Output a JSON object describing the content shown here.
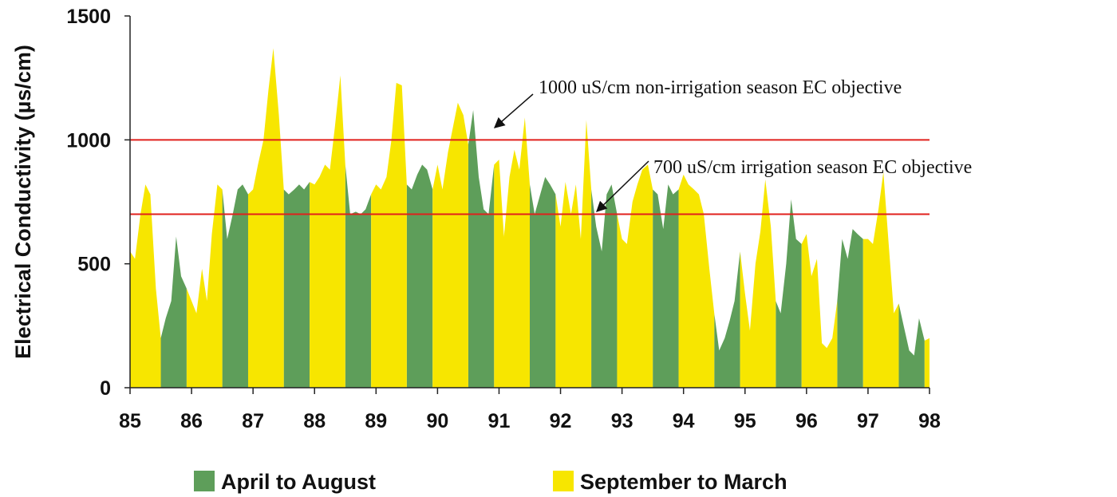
{
  "chart_data": {
    "type": "area",
    "y_label": "Electrical Conductivity (µs/cm)",
    "x": [
      85,
      85.08,
      85.17,
      85.25,
      85.33,
      85.42,
      85.5,
      85.58,
      85.67,
      85.75,
      85.83,
      85.92,
      86,
      86.08,
      86.17,
      86.25,
      86.33,
      86.42,
      86.5,
      86.58,
      86.67,
      86.75,
      86.83,
      86.92,
      87,
      87.08,
      87.17,
      87.25,
      87.33,
      87.42,
      87.5,
      87.58,
      87.67,
      87.75,
      87.83,
      87.92,
      88,
      88.08,
      88.17,
      88.25,
      88.33,
      88.42,
      88.5,
      88.58,
      88.67,
      88.75,
      88.83,
      88.92,
      89,
      89.08,
      89.17,
      89.25,
      89.33,
      89.42,
      89.5,
      89.58,
      89.67,
      89.75,
      89.83,
      89.92,
      90,
      90.08,
      90.17,
      90.25,
      90.33,
      90.42,
      90.5,
      90.58,
      90.67,
      90.75,
      90.83,
      90.92,
      91,
      91.08,
      91.17,
      91.25,
      91.33,
      91.42,
      91.5,
      91.58,
      91.67,
      91.75,
      91.83,
      91.92,
      92,
      92.08,
      92.17,
      92.25,
      92.33,
      92.42,
      92.5,
      92.58,
      92.67,
      92.75,
      92.83,
      92.92,
      93,
      93.08,
      93.17,
      93.25,
      93.33,
      93.42,
      93.5,
      93.58,
      93.67,
      93.75,
      93.83,
      93.92,
      94,
      94.08,
      94.17,
      94.25,
      94.33,
      94.42,
      94.5,
      94.58,
      94.67,
      94.75,
      94.83,
      94.92,
      95,
      95.08,
      95.17,
      95.25,
      95.33,
      95.42,
      95.5,
      95.58,
      95.67,
      95.75,
      95.83,
      95.92,
      96,
      96.08,
      96.17,
      96.25,
      96.33,
      96.42,
      96.5,
      96.58,
      96.67,
      96.75,
      96.83,
      96.92,
      97,
      97.08,
      97.17,
      97.25,
      97.33,
      97.42,
      97.5,
      97.58,
      97.67,
      97.75,
      97.83,
      97.92,
      98
    ],
    "series": [
      {
        "name": "April to August",
        "color": "#5e9e5a",
        "values": [
          null,
          null,
          null,
          null,
          null,
          null,
          200,
          280,
          350,
          610,
          450,
          400,
          null,
          null,
          null,
          null,
          null,
          null,
          800,
          600,
          700,
          800,
          820,
          780,
          null,
          null,
          null,
          null,
          null,
          null,
          800,
          780,
          800,
          820,
          800,
          830,
          null,
          null,
          null,
          null,
          null,
          null,
          900,
          700,
          710,
          700,
          720,
          780,
          null,
          null,
          null,
          null,
          null,
          null,
          820,
          800,
          860,
          900,
          880,
          800,
          null,
          null,
          null,
          null,
          null,
          null,
          980,
          1120,
          850,
          720,
          700,
          900,
          null,
          null,
          null,
          null,
          null,
          null,
          820,
          700,
          780,
          850,
          820,
          780,
          null,
          null,
          null,
          null,
          null,
          null,
          800,
          650,
          550,
          780,
          820,
          700,
          null,
          null,
          null,
          null,
          null,
          null,
          800,
          780,
          640,
          820,
          780,
          800,
          null,
          null,
          null,
          null,
          null,
          null,
          300,
          150,
          200,
          270,
          350,
          550,
          null,
          null,
          null,
          null,
          null,
          null,
          350,
          300,
          500,
          760,
          600,
          580,
          null,
          null,
          null,
          null,
          null,
          null,
          350,
          600,
          520,
          640,
          620,
          600,
          null,
          null,
          null,
          null,
          null,
          null,
          340,
          250,
          150,
          130,
          280,
          190,
          null
        ]
      },
      {
        "name": "September to March",
        "color": "#f7e600",
        "values": [
          550,
          520,
          700,
          820,
          780,
          400,
          200,
          null,
          null,
          null,
          null,
          400,
          350,
          300,
          480,
          350,
          620,
          820,
          800,
          null,
          null,
          null,
          null,
          780,
          800,
          900,
          1000,
          1200,
          1370,
          1100,
          800,
          null,
          null,
          null,
          null,
          830,
          820,
          850,
          900,
          880,
          1050,
          1260,
          900,
          null,
          null,
          null,
          null,
          780,
          820,
          800,
          850,
          1000,
          1230,
          1220,
          820,
          null,
          null,
          null,
          null,
          800,
          900,
          800,
          950,
          1050,
          1150,
          1100,
          980,
          null,
          null,
          null,
          null,
          900,
          920,
          610,
          850,
          960,
          880,
          1090,
          820,
          null,
          null,
          null,
          null,
          780,
          650,
          830,
          700,
          820,
          600,
          1080,
          800,
          null,
          null,
          null,
          null,
          700,
          600,
          580,
          750,
          820,
          880,
          900,
          800,
          null,
          null,
          null,
          null,
          800,
          860,
          820,
          800,
          780,
          700,
          480,
          300,
          null,
          null,
          null,
          null,
          550,
          380,
          230,
          500,
          630,
          840,
          650,
          350,
          null,
          null,
          null,
          null,
          580,
          620,
          450,
          520,
          180,
          160,
          200,
          350,
          null,
          null,
          null,
          null,
          600,
          600,
          580,
          720,
          870,
          600,
          300,
          340,
          null,
          null,
          null,
          null,
          190,
          200
        ]
      }
    ],
    "reference_lines": [
      {
        "value": 1000,
        "label": "1000 uS/cm non-irrigation season EC objective",
        "color": "#e0201c"
      },
      {
        "value": 700,
        "label": "700 uS/cm irrigation season EC objective",
        "color": "#e0201c"
      }
    ],
    "xlim": [
      85,
      98
    ],
    "xticks": [
      85,
      86,
      87,
      88,
      89,
      90,
      91,
      92,
      93,
      94,
      95,
      96,
      97,
      98
    ],
    "ylim": [
      0,
      1500
    ],
    "yticks": [
      0,
      500,
      1000,
      1500
    ],
    "grid": false
  }
}
